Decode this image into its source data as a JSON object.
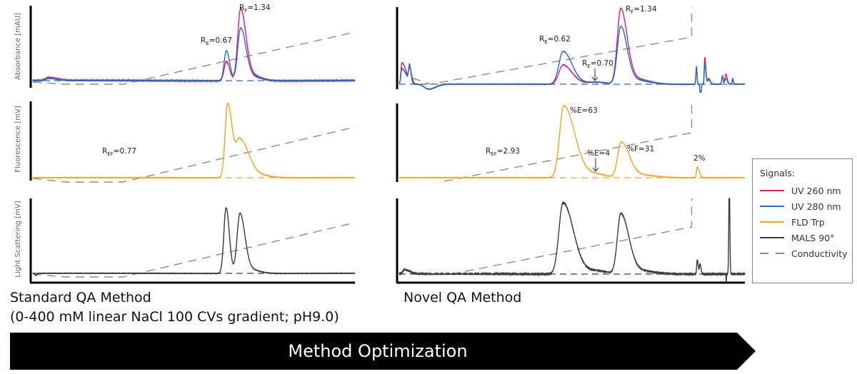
{
  "colors": {
    "uv260": "#e6197f",
    "uv280": "#1f6fc1",
    "fld": "#f7a21b",
    "mals": "#3a3a3a",
    "conductivity": "#8c8c8c"
  },
  "chart_data": [
    {
      "type": "line",
      "panel": "standard-absorbance",
      "ylabel": "Absorbance [mAU]",
      "x_unit": "percent of run",
      "y_unit": "relative signal",
      "series": [
        {
          "name": "UV 260 nm",
          "color": "#e6197f",
          "noise": 0.6,
          "peaks": [
            [
              5,
              4,
              1,
              2.5
            ],
            [
              60.1,
              27,
              0.7,
              1.0
            ],
            [
              64.5,
              100,
              0.9,
              1.6
            ],
            [
              67.5,
              8,
              1.5,
              3
            ]
          ]
        },
        {
          "name": "UV 280 nm",
          "color": "#1f6fc1",
          "noise": 0.3,
          "peaks": [
            [
              5,
              3,
              1,
              2.5
            ],
            [
              60.1,
              42,
              0.7,
              1.0
            ],
            [
              64.5,
              73,
              0.9,
              1.6
            ],
            [
              67.5,
              6,
              1.5,
              3
            ]
          ]
        }
      ],
      "baseline_color": "#1f6fc1",
      "conductivity": [
        [
          0,
          -2
        ],
        [
          10,
          -5
        ],
        [
          28,
          -5
        ],
        [
          100,
          68
        ]
      ],
      "annotations": [
        {
          "main": "R",
          "sub": "F",
          "rest": "=1.34"
        },
        {
          "main": "R",
          "sub": "E",
          "rest": "=0.67"
        }
      ]
    },
    {
      "type": "line",
      "panel": "standard-fluorescence",
      "ylabel": "Fluorescence [mV]",
      "series": [
        {
          "name": "FLD Trp",
          "color": "#f7a21b",
          "noise": 0.3,
          "peaks": [
            [
              60.5,
              104,
              0.8,
              1.4
            ],
            [
              64.3,
              52,
              1.2,
              2.5
            ],
            [
              68,
              6,
              2,
              4
            ]
          ]
        }
      ],
      "baseline_color": "#f7a21b",
      "conductivity": [
        [
          0,
          -1
        ],
        [
          10,
          -6
        ],
        [
          28,
          -6
        ],
        [
          100,
          71
        ]
      ],
      "annotations": [
        {
          "main": "R",
          "sub": "EF",
          "rest": "=0.77"
        }
      ]
    },
    {
      "type": "line",
      "panel": "standard-light-scattering",
      "ylabel": "Light Scattering [mV]",
      "series": [
        {
          "name": "MALS 90°",
          "color": "#3a3a3a",
          "noise": 0.3,
          "peaks": [
            [
              1,
              -3,
              0.3,
              0.3
            ],
            [
              60,
              92,
              0.7,
              1.0
            ],
            [
              64.3,
              83,
              0.9,
              1.5
            ],
            [
              67,
              6,
              1.5,
              3
            ]
          ]
        }
      ],
      "baseline_color": "#3a3a3a",
      "conductivity": [
        [
          0,
          -1
        ],
        [
          10,
          -5
        ],
        [
          28,
          -5
        ],
        [
          100,
          71
        ]
      ],
      "annotations": []
    },
    {
      "type": "line",
      "panel": "novel-absorbance",
      "ylabel": "",
      "series": [
        {
          "name": "UV 260 nm",
          "color": "#e6197f",
          "noise": 0.3,
          "peaks": [
            [
              0.8,
              30,
              0.3,
              1.2
            ],
            [
              3,
              18,
              0.3,
              0.6
            ],
            [
              8.5,
              -7,
              1.2,
              2
            ],
            [
              47.4,
              27,
              1.2,
              2.6
            ],
            [
              57,
              3,
              3,
              3
            ],
            [
              64.1,
              105,
              1,
              1.8
            ],
            [
              68,
              8,
              2,
              4
            ],
            [
              86,
              25,
              0.15,
              0.15
            ],
            [
              87.2,
              -25,
              0.15,
              0.15
            ],
            [
              88.4,
              38,
              0.15,
              0.3
            ],
            [
              89.5,
              8,
              0.3,
              0.5
            ],
            [
              93.5,
              12,
              0.2,
              0.2
            ],
            [
              94.5,
              14,
              0.3,
              0.4
            ],
            [
              96.5,
              8,
              0.2,
              0.2
            ]
          ]
        },
        {
          "name": "UV 280 nm",
          "color": "#1f6fc1",
          "noise": 0.3,
          "peaks": [
            [
              0.8,
              22,
              0.3,
              1.2
            ],
            [
              3,
              24,
              0.3,
              0.4
            ],
            [
              8.5,
              -7,
              1.2,
              2
            ],
            [
              47.4,
              46,
              1.2,
              2.6
            ],
            [
              57,
              3,
              3,
              3
            ],
            [
              64.1,
              80,
              1,
              1.8
            ],
            [
              68,
              6,
              2,
              4
            ],
            [
              86,
              25,
              0.15,
              0.15
            ],
            [
              87.2,
              -25,
              0.15,
              0.15
            ],
            [
              88.4,
              30,
              0.15,
              0.3
            ],
            [
              89.5,
              6,
              0.3,
              0.5
            ],
            [
              93.5,
              10,
              0.2,
              0.2
            ],
            [
              94.5,
              8,
              0.3,
              0.4
            ],
            [
              96.5,
              6,
              0.2,
              0.2
            ]
          ]
        }
      ],
      "baseline_color": "#1f6fc1",
      "conductivity": [
        [
          0.8,
          22
        ],
        [
          3,
          10
        ],
        [
          9,
          0
        ],
        [
          84.6,
          66
        ],
        [
          84.6,
          108
        ]
      ],
      "annotations": [
        {
          "main": "R",
          "sub": "E",
          "rest": "=0.62"
        },
        {
          "main": "R",
          "sub": "F",
          "rest": "=1.34"
        },
        {
          "main": "R",
          "sub": "E",
          "rest": "=0.70"
        }
      ]
    },
    {
      "type": "line",
      "panel": "novel-fluorescence",
      "ylabel": "",
      "series": [
        {
          "name": "FLD Trp",
          "color": "#f7a21b",
          "noise": 0.3,
          "peaks": [
            [
              47.6,
              101,
              1.2,
              3.2
            ],
            [
              57,
              5,
              3,
              3
            ],
            [
              64.2,
              49,
              1.0,
              2.2
            ],
            [
              68,
              5,
              2,
              5
            ],
            [
              86.2,
              15,
              0.2,
              0.6
            ]
          ]
        }
      ],
      "baseline_color": "#f7a21b",
      "conductivity": [
        [
          13,
          -5
        ],
        [
          84.6,
          63
        ],
        [
          84.6,
          104
        ]
      ],
      "annotations": [
        {
          "main": "%E=63",
          "sub": "",
          "rest": ""
        },
        {
          "main": "R",
          "sub": "EF",
          "rest": "=2.93"
        },
        {
          "main": "%E=4",
          "sub": "",
          "rest": ""
        },
        {
          "main": "%F=31",
          "sub": "",
          "rest": ""
        },
        {
          "main": "2%",
          "sub": "",
          "rest": ""
        }
      ]
    },
    {
      "type": "line",
      "panel": "novel-light-scattering",
      "ylabel": "",
      "series": [
        {
          "name": "MALS 90°",
          "color": "#3a3a3a",
          "noise": 0.8,
          "peaks": [
            [
              1.5,
              6,
              0.5,
              1.5
            ],
            [
              47.4,
              100,
              1.2,
              3
            ],
            [
              57,
              5,
              3,
              3
            ],
            [
              64.1,
              84,
              1.0,
              2.2
            ],
            [
              68,
              6,
              2,
              5
            ],
            [
              86.2,
              20,
              0.15,
              0.3
            ],
            [
              87,
              14,
              0.15,
              0.3
            ],
            [
              94.6,
              -12,
              0.05,
              0.05
            ],
            [
              95.5,
              130,
              0.15,
              0.15
            ]
          ]
        }
      ],
      "baseline_color": "#3a3a3a",
      "conductivity": [
        [
          15,
          0
        ],
        [
          84.6,
          66
        ],
        [
          84.6,
          106
        ]
      ],
      "annotations": []
    }
  ],
  "titles": {
    "standard": "Standard QA Method",
    "standard_sub": "(0-400 mM linear NaCl 100 CVs gradient; pH9.0)",
    "novel": "Novel QA Method"
  },
  "legend": {
    "title": "Signals:",
    "items": [
      {
        "label": "UV 260 nm",
        "color": "#e6197f",
        "style": "solid"
      },
      {
        "label": "UV 280 nm",
        "color": "#1f6fc1",
        "style": "solid"
      },
      {
        "label": "FLD Trp",
        "color": "#f7a21b",
        "style": "solid"
      },
      {
        "label": "MALS 90°",
        "color": "#3a3a3a",
        "style": "solid"
      },
      {
        "label": "Conductivity",
        "color": "#8c8c8c",
        "style": "dashed"
      }
    ]
  },
  "banner": {
    "label": "Method Optimization"
  }
}
